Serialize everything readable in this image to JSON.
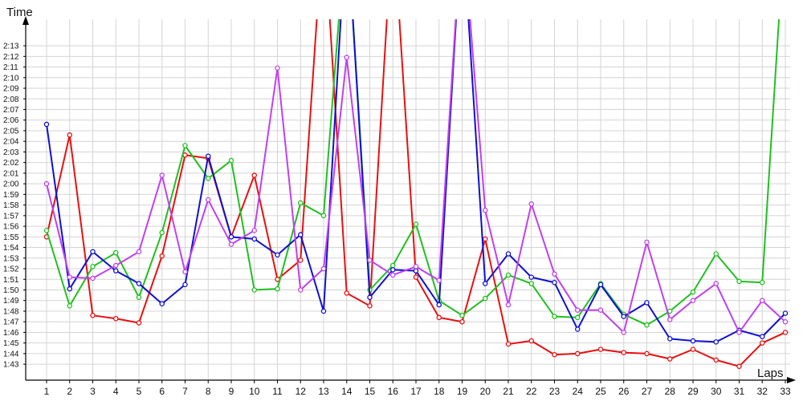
{
  "chart_data": {
    "type": "line",
    "xlabel": "Laps",
    "ylabel": "Time",
    "x": [
      1,
      2,
      3,
      4,
      5,
      6,
      7,
      8,
      9,
      10,
      11,
      12,
      13,
      14,
      15,
      16,
      17,
      18,
      19,
      20,
      21,
      22,
      23,
      24,
      25,
      26,
      27,
      28,
      29,
      30,
      31,
      32,
      33
    ],
    "x_tick_labels": [
      "1",
      "2",
      "3",
      "4",
      "5",
      "6",
      "7",
      "8",
      "9",
      "10",
      "11",
      "12",
      "13",
      "14",
      "15",
      "16",
      "17",
      "18",
      "19",
      "20",
      "21",
      "22",
      "23",
      "24",
      "25",
      "26",
      "27",
      "28",
      "29",
      "30",
      "31",
      "32",
      "33"
    ],
    "y_tick_labels": [
      "1:43",
      "1:44",
      "1:45",
      "1:46",
      "1:47",
      "1:48",
      "1:49",
      "1:50",
      "1:51",
      "1:52",
      "1:53",
      "1:54",
      "1:55",
      "1:56",
      "1:57",
      "1:58",
      "1:59",
      "2:00",
      "2:01",
      "2:02",
      "2:03",
      "2:04",
      "2:05",
      "2:06",
      "2:07",
      "2:08",
      "2:09",
      "2:10",
      "2:11",
      "2:12",
      "2:13"
    ],
    "y_unit": "seconds",
    "ylim": [
      101.5,
      135.5
    ],
    "grid": true,
    "series": [
      {
        "color": "#e81010",
        "values": [
          115.0,
          124.6,
          107.6,
          107.3,
          106.9,
          113.2,
          122.7,
          122.4,
          115.0,
          120.8,
          111.0,
          112.8,
          145.0,
          109.7,
          108.5,
          145.0,
          111.2,
          107.4,
          107.0,
          114.8,
          104.9,
          105.2,
          103.9,
          104.0,
          104.4,
          104.1,
          104.0,
          103.5,
          104.4,
          103.4,
          102.8,
          105.0,
          106.0
        ]
      },
      {
        "color": "#20c020",
        "values": [
          115.6,
          108.5,
          112.2,
          113.5,
          109.3,
          115.4,
          123.6,
          120.5,
          122.2,
          110.0,
          110.1,
          118.2,
          117.0,
          145.0,
          110.0,
          112.3,
          116.2,
          109.0,
          107.6,
          109.2,
          111.4,
          110.6,
          107.5,
          107.4,
          110.6,
          107.7,
          106.7,
          108.0,
          109.8,
          113.4,
          110.8,
          110.7,
          145.0
        ]
      },
      {
        "color": "#1010d0",
        "values": [
          125.6,
          110.1,
          113.6,
          111.8,
          110.6,
          108.7,
          110.5,
          122.6,
          115.0,
          114.8,
          113.3,
          115.2,
          108.0,
          145.0,
          109.3,
          111.9,
          111.8,
          108.6,
          145.0,
          110.6,
          113.4,
          111.2,
          110.7,
          106.3,
          110.5,
          107.5,
          108.8,
          105.4,
          105.2,
          105.1,
          106.2,
          105.6,
          107.8
        ]
      },
      {
        "color": "#c040f0",
        "values": [
          120.0,
          111.2,
          111.1,
          112.3,
          113.6,
          120.8,
          111.7,
          118.5,
          114.3,
          115.6,
          130.9,
          110.0,
          112.0,
          131.9,
          112.8,
          111.4,
          112.2,
          110.9,
          145.0,
          117.5,
          108.6,
          118.1,
          111.5,
          108.1,
          108.1,
          106.0,
          114.5,
          107.2,
          109.0,
          110.6,
          106.0,
          109.0,
          107.0
        ]
      }
    ]
  }
}
